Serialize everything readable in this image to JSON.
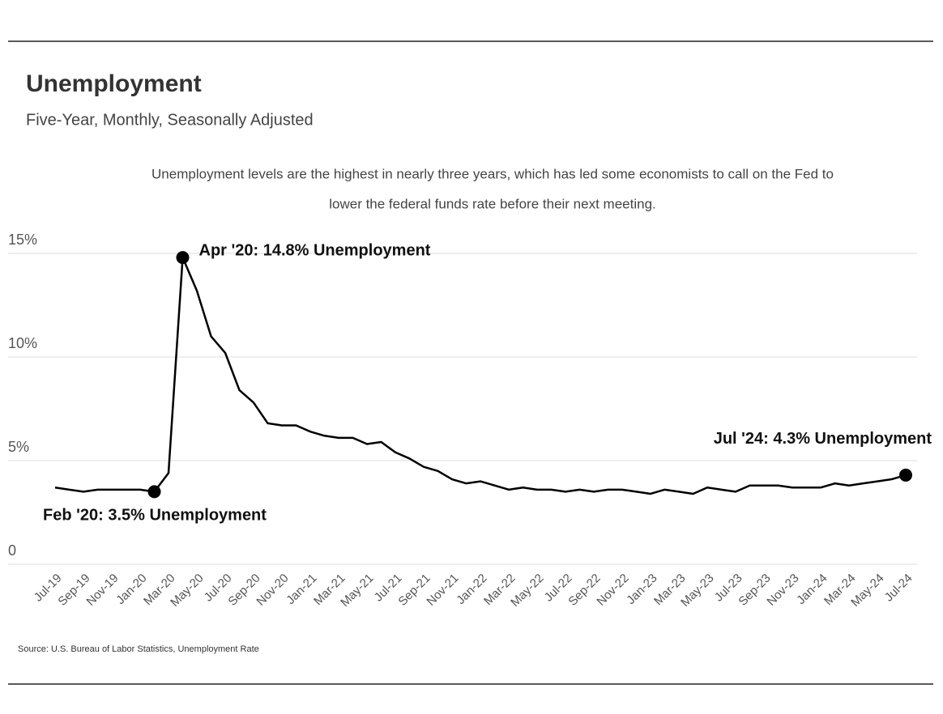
{
  "chart_data": {
    "type": "line",
    "title": "Unemployment",
    "subtitle": "Five-Year, Monthly, Seasonally Adjusted",
    "note": [
      "Unemployment levels are the highest in nearly three years, which has led some economists to call on the Fed to",
      "lower the federal funds rate before their next meeting."
    ],
    "source": "Source:  U.S. Bureau of Labor Statistics, Unemployment Rate",
    "categories": [
      "Jul-19",
      null,
      "Sep-19",
      null,
      "Nov-19",
      null,
      "Jan-20",
      null,
      "Mar-20",
      null,
      "May-20",
      null,
      "Jul-20",
      null,
      "Sep-20",
      null,
      "Nov-20",
      null,
      "Jan-21",
      null,
      "Mar-21",
      null,
      "May-21",
      null,
      "Jul-21",
      null,
      "Sep-21",
      null,
      "Nov-21",
      null,
      "Jan-22",
      null,
      "Mar-22",
      null,
      "May-22",
      null,
      "Jul-22",
      null,
      "Sep-22",
      null,
      "Nov-22",
      null,
      "Jan-23",
      null,
      "Mar-23",
      null,
      "May-23",
      null,
      "Jul-23",
      null,
      "Sep-23",
      null,
      "Nov-23",
      null,
      "Jan-24",
      null,
      "Mar-24",
      null,
      "May-24",
      null,
      "Jul-24"
    ],
    "values": [
      3.7,
      3.6,
      3.5,
      3.6,
      3.6,
      3.6,
      3.6,
      3.5,
      4.4,
      14.8,
      13.2,
      11.0,
      10.2,
      8.4,
      7.8,
      6.8,
      6.7,
      6.7,
      6.4,
      6.2,
      6.1,
      6.1,
      5.8,
      5.9,
      5.4,
      5.1,
      4.7,
      4.5,
      4.1,
      3.9,
      4.0,
      3.8,
      3.6,
      3.7,
      3.6,
      3.6,
      3.5,
      3.6,
      3.5,
      3.6,
      3.6,
      3.5,
      3.4,
      3.6,
      3.5,
      3.4,
      3.7,
      3.6,
      3.5,
      3.8,
      3.8,
      3.8,
      3.7,
      3.7,
      3.7,
      3.9,
      3.8,
      3.9,
      4.0,
      4.1,
      4.3
    ],
    "color": "#000000",
    "annotations": [
      "Feb '20: 3.5% Unemployment",
      "Apr '20: 14.8% Unemployment",
      "Jul '24: 4.3% Unemployment"
    ],
    "ylim": [
      0,
      15
    ],
    "yticks": [
      0,
      {
        "value": 5,
        "label": "5%"
      },
      {
        "value": 10,
        "label": "10%"
      },
      {
        "value": 15,
        "label": "15%"
      }
    ],
    "grid": true
  }
}
